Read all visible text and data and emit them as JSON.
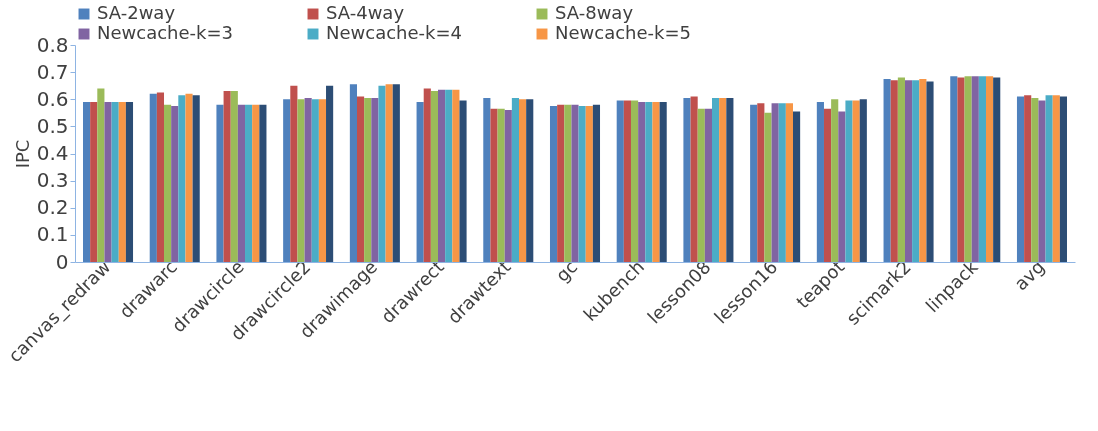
{
  "chart_data": {
    "type": "bar",
    "ylabel": "IPC",
    "categories": [
      "canvas_redraw",
      "drawarc",
      "drawcircle",
      "drawcircle2",
      "drawimage",
      "drawrect",
      "drawtext",
      "gc",
      "kubench",
      "lesson08",
      "lesson16",
      "teapot",
      "scimark2",
      "linpack",
      "avg"
    ],
    "series": [
      {
        "name": "SA-2way",
        "color": "#4f81bd",
        "values": [
          0.59,
          0.62,
          0.58,
          0.6,
          0.655,
          0.59,
          0.605,
          0.575,
          0.595,
          0.605,
          0.58,
          0.59,
          0.675,
          0.685,
          0.61
        ]
      },
      {
        "name": "SA-4way",
        "color": "#c0504d",
        "values": [
          0.59,
          0.625,
          0.63,
          0.65,
          0.61,
          0.64,
          0.565,
          0.58,
          0.595,
          0.61,
          0.585,
          0.565,
          0.67,
          0.68,
          0.615
        ]
      },
      {
        "name": "SA-8way",
        "color": "#9bbb59",
        "values": [
          0.64,
          0.58,
          0.63,
          0.6,
          0.605,
          0.63,
          0.565,
          0.58,
          0.595,
          0.565,
          0.55,
          0.6,
          0.68,
          0.685,
          0.605
        ]
      },
      {
        "name": "Newcache-k=3",
        "color": "#8064a2",
        "values": [
          0.59,
          0.575,
          0.58,
          0.605,
          0.605,
          0.635,
          0.56,
          0.58,
          0.59,
          0.565,
          0.585,
          0.555,
          0.67,
          0.685,
          0.595
        ]
      },
      {
        "name": "Newcache-k=4",
        "color": "#4bacc6",
        "values": [
          0.59,
          0.615,
          0.58,
          0.6,
          0.65,
          0.635,
          0.605,
          0.575,
          0.59,
          0.605,
          0.585,
          0.595,
          0.67,
          0.685,
          0.615
        ]
      },
      {
        "name": "Newcache-k=5",
        "color": "#f79646",
        "values": [
          0.59,
          0.62,
          0.58,
          0.6,
          0.655,
          0.635,
          0.6,
          0.575,
          0.59,
          0.605,
          0.585,
          0.595,
          0.675,
          0.685,
          0.615
        ]
      },
      {
        "color": "#2c4d75",
        "values": [
          0.59,
          0.615,
          0.58,
          0.65,
          0.655,
          0.595,
          0.6,
          0.58,
          0.59,
          0.605,
          0.555,
          0.6,
          0.665,
          0.68,
          0.61
        ]
      }
    ],
    "ylim": [
      0,
      0.8
    ],
    "yticks": [
      0,
      0.1,
      0.2,
      0.3,
      0.4,
      0.5,
      0.6,
      0.7,
      0.8
    ],
    "grid": false,
    "legend": "top"
  }
}
